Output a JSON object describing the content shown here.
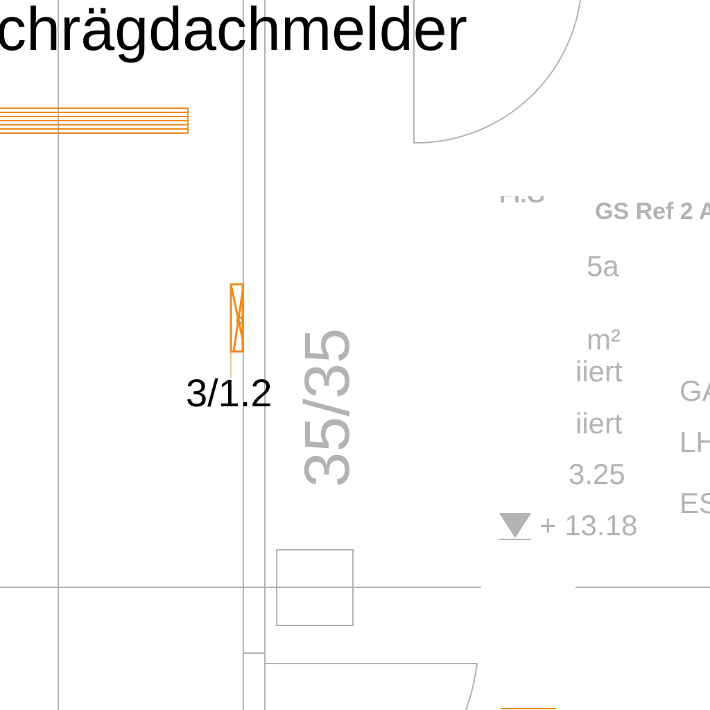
{
  "title_fragment": "chrägdachmelder",
  "device_label": "3/1.2",
  "column_dims": "35/35",
  "room_stamp": {
    "line_top_left": "Fl.G",
    "ref": "GS Ref 2 A",
    "line_5a": "5a",
    "area_unit": "m²",
    "status_1": "iiert",
    "status_2": "iiert",
    "height_partial": "3.25",
    "height_marker": "+ 13.18",
    "right_1": "GA",
    "right_2": "LH",
    "right_3": "ES"
  },
  "colors": {
    "plan_lines": "#b3b3b3",
    "accent_orange": "#f08a1c",
    "text_black": "#000000",
    "text_grey": "#b3b3b3"
  }
}
